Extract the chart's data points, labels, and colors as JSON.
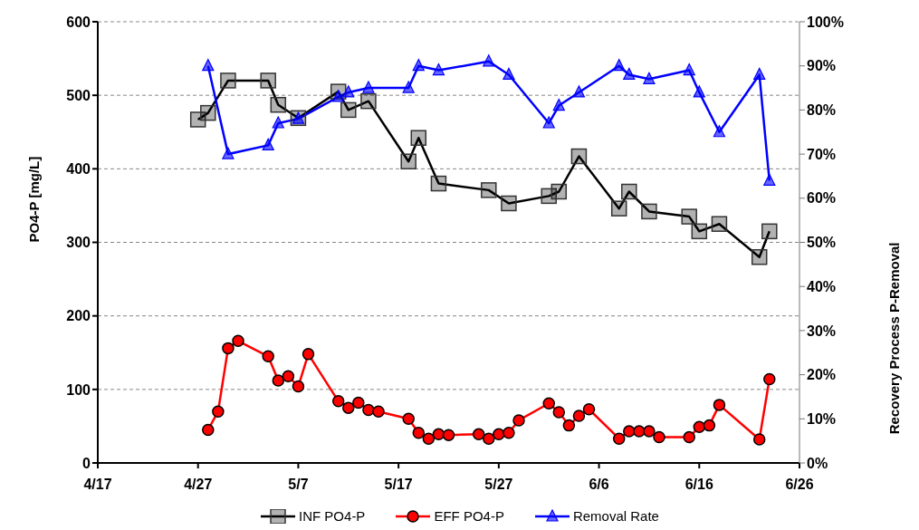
{
  "chart_data": {
    "type": "line",
    "ylabel": "PO4-P [mg/L]",
    "y2label": "Recovery  Process  P-Removal",
    "xlim": [
      "--04-17",
      "--06-26"
    ],
    "xticks": [
      {
        "value": "--04-17",
        "label": "4/17"
      },
      {
        "value": "--04-27",
        "label": "4/27"
      },
      {
        "value": "--05-07",
        "label": "5/7"
      },
      {
        "value": "--05-17",
        "label": "5/17"
      },
      {
        "value": "--05-27",
        "label": "5/27"
      },
      {
        "value": "--06-06",
        "label": "6/6"
      },
      {
        "value": "--06-16",
        "label": "6/16"
      },
      {
        "value": "--06-26",
        "label": "6/26"
      }
    ],
    "ylim": [
      0,
      600
    ],
    "yticks": [
      0,
      100,
      200,
      300,
      400,
      500,
      600
    ],
    "y2lim": [
      0,
      100
    ],
    "y2ticks": [
      {
        "value": 0,
        "label": "0%"
      },
      {
        "value": 10,
        "label": "10%"
      },
      {
        "value": 20,
        "label": "20%"
      },
      {
        "value": 30,
        "label": "30%"
      },
      {
        "value": 40,
        "label": "40%"
      },
      {
        "value": 50,
        "label": "50%"
      },
      {
        "value": 60,
        "label": "60%"
      },
      {
        "value": 70,
        "label": "70%"
      },
      {
        "value": 80,
        "label": "80%"
      },
      {
        "value": 90,
        "label": "90%"
      },
      {
        "value": 100,
        "label": "100%"
      }
    ],
    "grid": true,
    "legend": "bottom",
    "line_style": "solid",
    "series": [
      {
        "name": "INF PO4-P",
        "color": "#000000",
        "marker": "square",
        "x": [
          "--04-27",
          "--04-28",
          "--04-30",
          "--05-04",
          "--05-05",
          "--05-07",
          "--05-11",
          "--05-12",
          "--05-14",
          "--05-18",
          "--05-19",
          "--05-21",
          "--05-26",
          "--05-28",
          "--06-01",
          "--06-02",
          "--06-04",
          "--06-08",
          "--06-09",
          "--06-11",
          "--06-15",
          "--06-16",
          "--06-18",
          "--06-22",
          "--06-23"
        ],
        "values": [
          467,
          476,
          520,
          520,
          487,
          469,
          505,
          480,
          492,
          410,
          442,
          380,
          371,
          353,
          363,
          369,
          417,
          346,
          369,
          342,
          335,
          315,
          325,
          280,
          315
        ]
      },
      {
        "name": "EFF PO4-P",
        "color": "#ff0000",
        "marker": "circle",
        "x": [
          "--04-28",
          "--04-29",
          "--04-30",
          "--05-01",
          "--05-04",
          "--05-05",
          "--05-06",
          "--05-07",
          "--05-08",
          "--05-11",
          "--05-12",
          "--05-13",
          "--05-14",
          "--05-15",
          "--05-18",
          "--05-19",
          "--05-20",
          "--05-21",
          "--05-22",
          "--05-25",
          "--05-26",
          "--05-27",
          "--05-28",
          "--05-29",
          "--06-01",
          "--06-02",
          "--06-03",
          "--06-04",
          "--06-05",
          "--06-08",
          "--06-09",
          "--06-10",
          "--06-11",
          "--06-12",
          "--06-15",
          "--06-16",
          "--06-17",
          "--06-18",
          "--06-22",
          "--06-23"
        ],
        "values": [
          45,
          70,
          156,
          166,
          145,
          112,
          118,
          104,
          148,
          84,
          75,
          82,
          72,
          70,
          60,
          41,
          33,
          39,
          38,
          39,
          33,
          39,
          41,
          58,
          81,
          69,
          51,
          64,
          73,
          33,
          43,
          43,
          43,
          35,
          35,
          49,
          51,
          79,
          32,
          114
        ]
      },
      {
        "name": "Removal Rate",
        "color": "#0000ff",
        "marker": "triangle",
        "axis": "y2",
        "x": [
          "--04-28",
          "--04-30",
          "--05-04",
          "--05-05",
          "--05-07",
          "--05-11",
          "--05-12",
          "--05-14",
          "--05-18",
          "--05-19",
          "--05-21",
          "--05-26",
          "--05-28",
          "--06-01",
          "--06-02",
          "--06-04",
          "--06-08",
          "--06-09",
          "--06-11",
          "--06-15",
          "--06-16",
          "--06-18",
          "--06-22",
          "--06-23"
        ],
        "values": [
          90,
          70,
          72,
          77,
          78,
          83,
          84,
          85,
          85,
          90,
          89,
          91,
          88,
          77,
          81,
          84,
          90,
          88,
          87,
          89,
          84,
          75,
          88,
          64
        ]
      }
    ]
  }
}
